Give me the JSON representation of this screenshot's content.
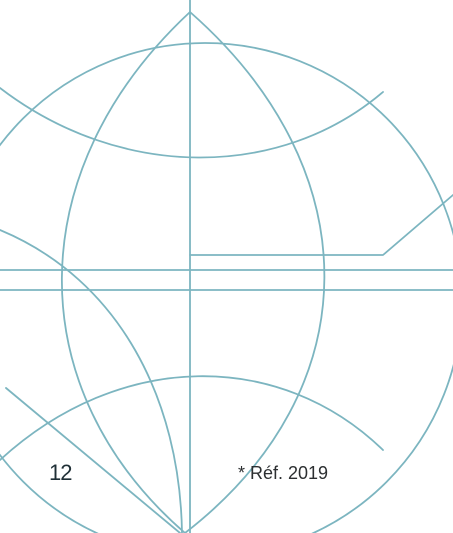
{
  "page": {
    "number": "12",
    "footnote": "* Réf. 2019"
  },
  "decor": {
    "stroke_color": "#7cb5c0",
    "motif": "globe-line-illustration"
  }
}
